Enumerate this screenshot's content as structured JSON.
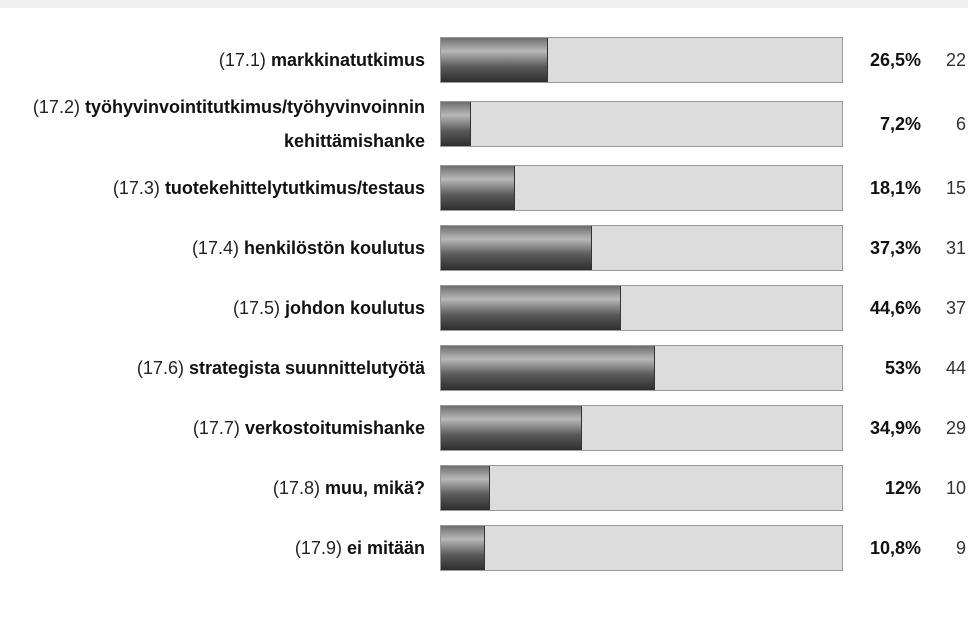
{
  "chart_data": {
    "type": "bar",
    "codes": [
      "(17.1)",
      "(17.2)",
      "(17.3)",
      "(17.4)",
      "(17.5)",
      "(17.6)",
      "(17.7)",
      "(17.8)",
      "(17.9)"
    ],
    "categories": [
      "markkinatutkimus",
      "työhyvinvointitutkimus/työhyvinvoinnin kehittämishanke",
      "tuotekehittelytutkimus/testaus",
      "henkilöstön koulutus",
      "johdon koulutus",
      "strategista suunnittelutyötä",
      "verkostoitumishanke",
      "muu, mikä?",
      "ei mitään"
    ],
    "values": [
      26.5,
      7.2,
      18.1,
      37.3,
      44.6,
      53,
      34.9,
      12,
      10.8
    ],
    "value_labels": [
      "26,5%",
      "7,2%",
      "18,1%",
      "37,3%",
      "44,6%",
      "53%",
      "34,9%",
      "12%",
      "10,8%"
    ],
    "counts": [
      22,
      6,
      15,
      31,
      37,
      44,
      29,
      10,
      9
    ],
    "xlim": [
      0,
      100
    ],
    "color": "#5a5a5a"
  }
}
